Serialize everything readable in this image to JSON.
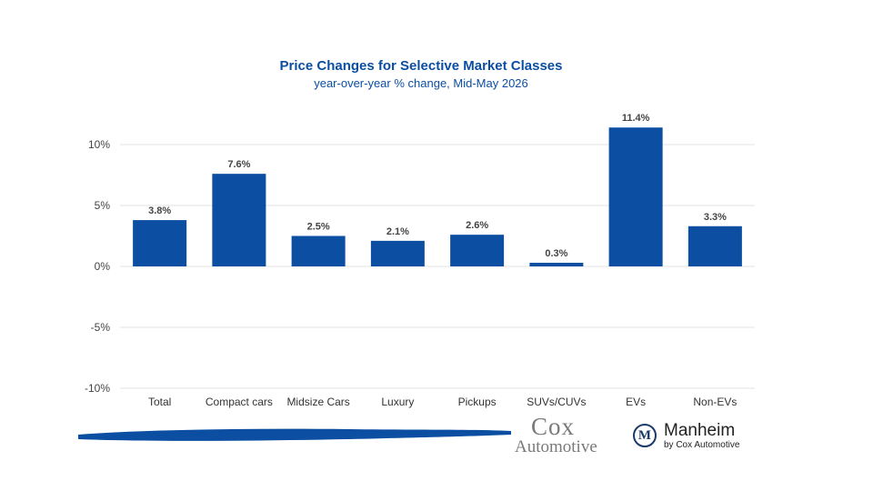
{
  "chart_data": {
    "type": "bar",
    "title": "Price Changes for Selective Market Classes",
    "subtitle": "year-over-year % change, Mid-May 2026",
    "categories": [
      "Total",
      "Compact cars",
      "Midsize Cars",
      "Luxury",
      "Pickups",
      "SUVs/CUVs",
      "EVs",
      "Non-EVs"
    ],
    "values": [
      3.8,
      7.6,
      2.5,
      2.1,
      2.6,
      0.3,
      11.4,
      3.3
    ],
    "value_labels": [
      "3.8%",
      "7.6%",
      "2.5%",
      "2.1%",
      "2.6%",
      "0.3%",
      "11.4%",
      "3.3%"
    ],
    "ylim": [
      -10,
      10
    ],
    "yticks": [
      10,
      5,
      0,
      -5,
      -10
    ],
    "ytick_labels": [
      "10%",
      "5%",
      "0%",
      "-5%",
      "-10%"
    ],
    "grid": true,
    "bar_color": "#0b4ea2"
  },
  "footer": {
    "cox_top": "Cox",
    "cox_bottom": "Automotive",
    "manheim_badge": "M",
    "manheim_name": "Manheim",
    "manheim_by": "by Cox Automotive"
  }
}
